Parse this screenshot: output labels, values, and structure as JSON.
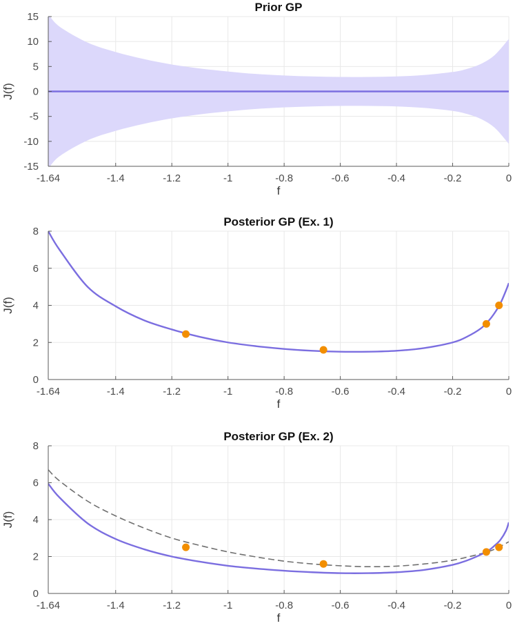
{
  "colors": {
    "mean": "#7b6ee0",
    "band": "#dcd8fb",
    "dashed": "#6f6f6f",
    "points": "#f28e00",
    "grid": "#e8e8e8",
    "axis": "#5a5a5a"
  },
  "chart_data": [
    {
      "type": "area",
      "title": "Prior GP",
      "xlabel": "f",
      "ylabel": "J(f)",
      "xlim": [
        -1.64,
        0
      ],
      "ylim": [
        -15,
        15
      ],
      "grid": true,
      "xticks": [
        -1.64,
        -1.4,
        -1.2,
        -1,
        -0.8,
        -0.6,
        -0.4,
        -0.2,
        0
      ],
      "xtick_labels": [
        "-1.64",
        "-1.4",
        "-1.2",
        "-1",
        "-0.8",
        "-0.6",
        "-0.4",
        "-0.2",
        "0"
      ],
      "yticks": [
        -15,
        -10,
        -5,
        0,
        5,
        10,
        15
      ],
      "ytick_labels": [
        "-15",
        "-10",
        "-5",
        "0",
        "5",
        "10",
        "15"
      ],
      "series": [
        {
          "kind": "mean-line",
          "x": [
            -1.64,
            0
          ],
          "y": [
            0,
            0
          ]
        },
        {
          "kind": "confidence-band",
          "x": [
            -1.64,
            -1.6,
            -1.5,
            -1.4,
            -1.3,
            -1.2,
            -1.1,
            -1.0,
            -0.9,
            -0.8,
            -0.7,
            -0.6,
            -0.5,
            -0.4,
            -0.3,
            -0.2,
            -0.15,
            -0.1,
            -0.05,
            0
          ],
          "upper": [
            15.5,
            13.0,
            9.8,
            7.9,
            6.5,
            5.4,
            4.6,
            4.0,
            3.5,
            3.2,
            3.0,
            2.9,
            2.9,
            3.0,
            3.3,
            3.9,
            4.5,
            5.5,
            7.3,
            10.5
          ],
          "lower": [
            -15.5,
            -13.0,
            -9.8,
            -7.9,
            -6.5,
            -5.4,
            -4.6,
            -4.0,
            -3.5,
            -3.2,
            -3.0,
            -2.9,
            -2.9,
            -3.0,
            -3.3,
            -3.9,
            -4.5,
            -5.5,
            -7.3,
            -10.5
          ]
        }
      ]
    },
    {
      "type": "line",
      "title": "Posterior GP (Ex. 1)",
      "xlabel": "f",
      "ylabel": "J(f)",
      "xlim": [
        -1.64,
        0
      ],
      "ylim": [
        0,
        8
      ],
      "grid": true,
      "xticks": [
        -1.64,
        -1.4,
        -1.2,
        -1,
        -0.8,
        -0.6,
        -0.4,
        -0.2,
        0
      ],
      "xtick_labels": [
        "-1.64",
        "-1.4",
        "-1.2",
        "-1",
        "-0.8",
        "-0.6",
        "-0.4",
        "-0.2",
        "0"
      ],
      "yticks": [
        0,
        2,
        4,
        6,
        8
      ],
      "ytick_labels": [
        "0",
        "2",
        "4",
        "6",
        "8"
      ],
      "series": [
        {
          "kind": "dashed-line",
          "x": [
            -1.64,
            -1.6,
            -1.5,
            -1.4,
            -1.3,
            -1.2,
            -1.1,
            -1.0,
            -0.9,
            -0.8,
            -0.7,
            -0.6,
            -0.5,
            -0.4,
            -0.3,
            -0.2,
            -0.15,
            -0.1,
            -0.07,
            -0.05,
            -0.03,
            -0.01,
            0
          ],
          "y": [
            8.0,
            7.0,
            5.0,
            3.95,
            3.2,
            2.7,
            2.3,
            2.0,
            1.8,
            1.65,
            1.55,
            1.5,
            1.5,
            1.55,
            1.7,
            2.0,
            2.3,
            2.75,
            3.2,
            3.6,
            4.1,
            4.8,
            5.2
          ]
        },
        {
          "kind": "mean-line",
          "x": [
            -1.64,
            -1.6,
            -1.5,
            -1.4,
            -1.3,
            -1.2,
            -1.1,
            -1.0,
            -0.9,
            -0.8,
            -0.7,
            -0.6,
            -0.5,
            -0.4,
            -0.3,
            -0.2,
            -0.15,
            -0.1,
            -0.07,
            -0.05,
            -0.03,
            -0.01,
            0
          ],
          "y": [
            8.0,
            7.0,
            5.0,
            3.95,
            3.2,
            2.7,
            2.3,
            2.0,
            1.8,
            1.65,
            1.55,
            1.5,
            1.5,
            1.55,
            1.7,
            2.0,
            2.3,
            2.75,
            3.2,
            3.6,
            4.1,
            4.8,
            5.2
          ]
        },
        {
          "kind": "points",
          "x": [
            -1.15,
            -0.66,
            -0.08,
            -0.035
          ],
          "y": [
            2.45,
            1.6,
            3.0,
            4.0
          ]
        }
      ]
    },
    {
      "type": "line",
      "title": "Posterior GP (Ex. 2)",
      "xlabel": "f",
      "ylabel": "J(f)",
      "xlim": [
        -1.64,
        0
      ],
      "ylim": [
        0,
        8
      ],
      "grid": true,
      "xticks": [
        -1.64,
        -1.4,
        -1.2,
        -1,
        -0.8,
        -0.6,
        -0.4,
        -0.2,
        0
      ],
      "xtick_labels": [
        "-1.64",
        "-1.4",
        "-1.2",
        "-1",
        "-0.8",
        "-0.6",
        "-0.4",
        "-0.2",
        "0"
      ],
      "yticks": [
        0,
        2,
        4,
        6,
        8
      ],
      "ytick_labels": [
        "0",
        "2",
        "4",
        "6",
        "8"
      ],
      "series": [
        {
          "kind": "dashed-line",
          "x": [
            -1.64,
            -1.6,
            -1.5,
            -1.4,
            -1.3,
            -1.2,
            -1.1,
            -1.0,
            -0.9,
            -0.8,
            -0.7,
            -0.6,
            -0.5,
            -0.4,
            -0.3,
            -0.2,
            -0.1,
            -0.05,
            0
          ],
          "y": [
            6.7,
            6.1,
            5.0,
            4.2,
            3.55,
            3.0,
            2.6,
            2.25,
            1.98,
            1.75,
            1.6,
            1.5,
            1.45,
            1.48,
            1.6,
            1.8,
            2.15,
            2.4,
            2.8
          ]
        },
        {
          "kind": "mean-line",
          "x": [
            -1.64,
            -1.6,
            -1.5,
            -1.4,
            -1.3,
            -1.2,
            -1.1,
            -1.0,
            -0.9,
            -0.8,
            -0.7,
            -0.6,
            -0.5,
            -0.4,
            -0.3,
            -0.2,
            -0.15,
            -0.1,
            -0.07,
            -0.05,
            -0.03,
            -0.01,
            0
          ],
          "y": [
            5.95,
            5.2,
            3.8,
            2.95,
            2.4,
            2.0,
            1.72,
            1.5,
            1.35,
            1.23,
            1.15,
            1.1,
            1.1,
            1.15,
            1.28,
            1.55,
            1.78,
            2.1,
            2.35,
            2.6,
            2.9,
            3.4,
            3.85
          ]
        },
        {
          "kind": "points",
          "x": [
            -1.15,
            -0.66,
            -0.08,
            -0.035
          ],
          "y": [
            2.5,
            1.6,
            2.25,
            2.5
          ]
        }
      ]
    }
  ]
}
